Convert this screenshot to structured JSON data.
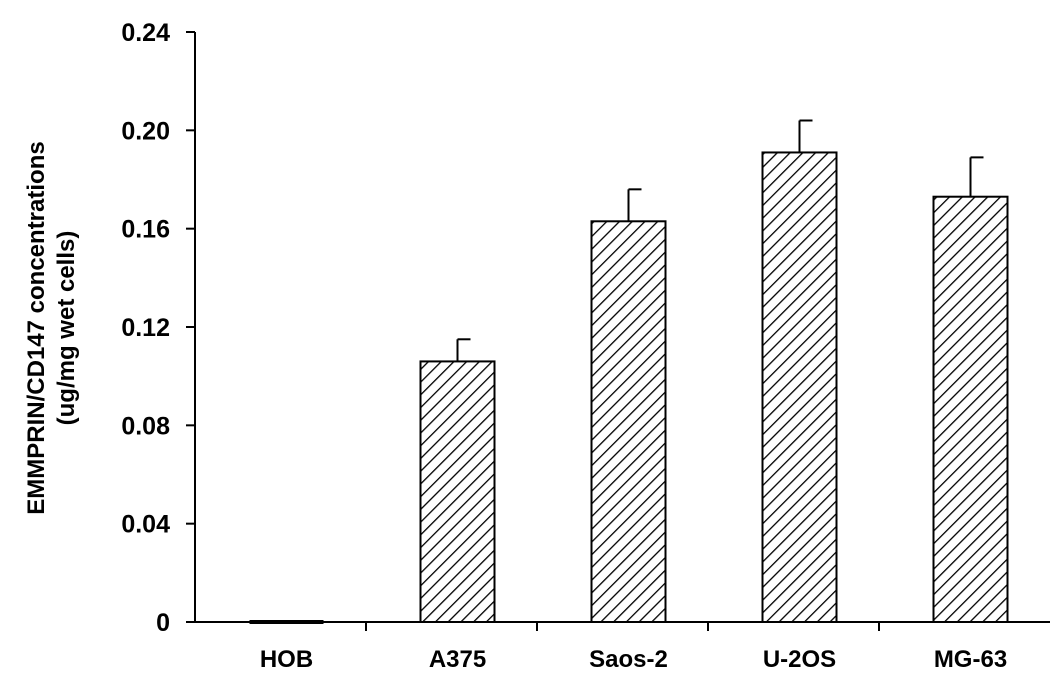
{
  "chart_data": {
    "type": "bar",
    "title": "",
    "categories": [
      "HOB",
      "A375",
      "Saos-2",
      "U-2OS",
      "MG-63"
    ],
    "values": [
      0.0,
      0.106,
      0.163,
      0.191,
      0.173
    ],
    "errors": [
      0.0,
      0.009,
      0.013,
      0.013,
      0.016
    ],
    "xlabel": "",
    "ylabel": "EMMPRIN/CD147 concentrations",
    "ylabel_line2": "(ug/mg wet cells)",
    "ylim": [
      0,
      0.24
    ],
    "yticks": [
      "0",
      "0.04",
      "0.08",
      "0.12",
      "0.16",
      "0.20",
      "0.24"
    ],
    "grid": false,
    "bar_fill": "diagonal-hatch",
    "bar_color": "#000000",
    "background": "#ffffff"
  }
}
